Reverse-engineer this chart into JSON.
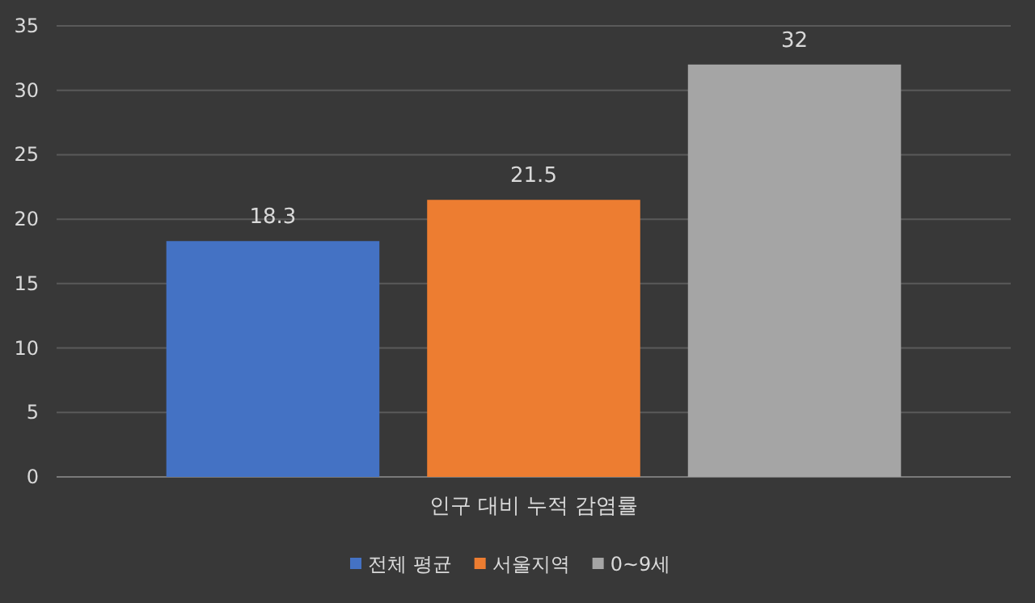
{
  "chart_data": {
    "type": "bar",
    "categories": [
      "인구 대비 누적 감염률"
    ],
    "series": [
      {
        "name": "전체 평균",
        "color": "#4472c4",
        "values": [
          18.3
        ]
      },
      {
        "name": "서울지역",
        "color": "#ed7d31",
        "values": [
          21.5
        ]
      },
      {
        "name": "0~9세",
        "color": "#a5a5a5",
        "values": [
          32
        ]
      }
    ],
    "ylim": [
      0,
      35
    ],
    "yticks": [
      0,
      5,
      10,
      15,
      20,
      25,
      30,
      35
    ],
    "grid": "y",
    "legend": "bottom",
    "data_labels": true
  }
}
